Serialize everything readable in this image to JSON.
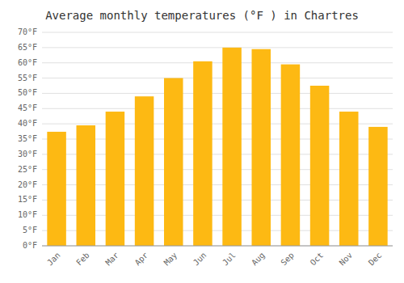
{
  "chart_data": {
    "type": "bar",
    "title": "Average monthly temperatures (°F ) in Chartres",
    "categories": [
      "Jan",
      "Feb",
      "Mar",
      "Apr",
      "May",
      "Jun",
      "Jul",
      "Aug",
      "Sep",
      "Oct",
      "Nov",
      "Dec"
    ],
    "values": [
      37.4,
      39.5,
      44.0,
      49.0,
      55.0,
      60.5,
      65.0,
      64.5,
      59.5,
      52.5,
      44.0,
      39.0
    ],
    "color": "#FDB913",
    "ylim": [
      0,
      70
    ],
    "yticks": [
      {
        "value": 0,
        "label": "0°F"
      },
      {
        "value": 5,
        "label": "5°F"
      },
      {
        "value": 10,
        "label": "10°F"
      },
      {
        "value": 15,
        "label": "15°F"
      },
      {
        "value": 20,
        "label": "20°F"
      },
      {
        "value": 25,
        "label": "25°F"
      },
      {
        "value": 30,
        "label": "30°F"
      },
      {
        "value": 35,
        "label": "35°F"
      },
      {
        "value": 40,
        "label": "40°F"
      },
      {
        "value": 45,
        "label": "45°F"
      },
      {
        "value": 50,
        "label": "50°F"
      },
      {
        "value": 55,
        "label": "55°F"
      },
      {
        "value": 60,
        "label": "60°F"
      },
      {
        "value": 65,
        "label": "65°F"
      },
      {
        "value": 70,
        "label": "70°F"
      }
    ],
    "grid": true
  }
}
